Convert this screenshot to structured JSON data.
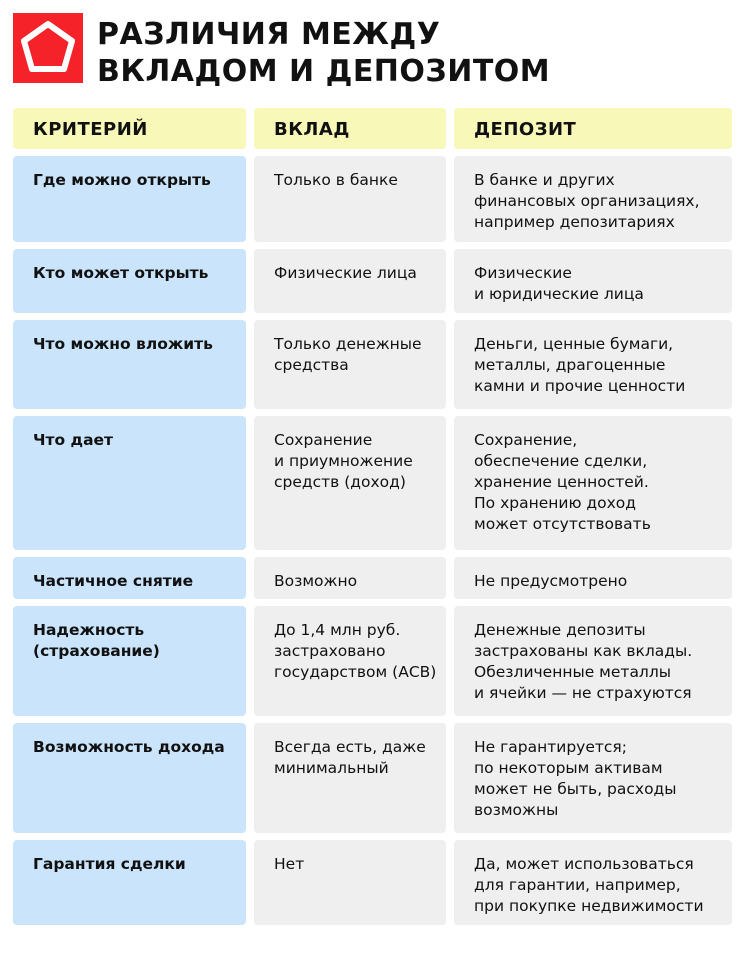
{
  "brand": {
    "color": "#f52229",
    "icon": "pentagon-icon"
  },
  "title": {
    "line1": "РАЗЛИЧИЯ МЕЖДУ",
    "line2": "ВКЛАДОМ И ДЕПОЗИТОМ"
  },
  "colors": {
    "header": "#f8f8b9",
    "criterion": "#c9e4fb",
    "value": "#efefef"
  },
  "table": {
    "headers": [
      "КРИТЕРИЙ",
      "ВКЛАД",
      "ДЕПОЗИТ"
    ],
    "rows": [
      {
        "criterion": [
          "Где можно открыть"
        ],
        "deposit_bank": [
          "Только в банке"
        ],
        "deposit": [
          "В банке и других",
          "финансовых организациях,",
          "например депозитариях"
        ]
      },
      {
        "criterion": [
          "Кто может открыть"
        ],
        "deposit_bank": [
          "Физические лица"
        ],
        "deposit": [
          "Физические",
          "и юридические лица"
        ]
      },
      {
        "criterion": [
          "Что можно вложить"
        ],
        "deposit_bank": [
          "Только денежные",
          "средства"
        ],
        "deposit": [
          "Деньги, ценные бумаги,",
          "металлы, драгоценные",
          "камни и прочие ценности"
        ]
      },
      {
        "criterion": [
          "Что дает"
        ],
        "deposit_bank": [
          "Сохранение",
          "и приумножение",
          "средств (доход)"
        ],
        "deposit": [
          "Сохранение,",
          "обеспечение сделки,",
          "хранение ценностей.",
          "По хранению доход",
          "может отсутствовать"
        ]
      },
      {
        "criterion": [
          "Частичное снятие"
        ],
        "deposit_bank": [
          "Возможно"
        ],
        "deposit": [
          "Не предусмотрено"
        ]
      },
      {
        "criterion": [
          "Надежность",
          "(страхование)"
        ],
        "deposit_bank": [
          "До 1,4 млн руб.",
          "застраховано",
          "государством (АСВ)"
        ],
        "deposit": [
          "Денежные депозиты",
          "застрахованы как вклады.",
          "Обезличенные металлы",
          "и ячейки — не страхуются"
        ]
      },
      {
        "criterion": [
          "Возможность дохода"
        ],
        "deposit_bank": [
          "Всегда есть, даже",
          "минимальный"
        ],
        "deposit": [
          "Не гарантируется;",
          "по некоторым активам",
          "может не быть, расходы",
          "возможны"
        ]
      },
      {
        "criterion": [
          "Гарантия сделки"
        ],
        "deposit_bank": [
          "Нет"
        ],
        "deposit": [
          "Да, может использоваться",
          "для гарантии, например,",
          "при покупке недвижимости"
        ]
      }
    ]
  }
}
